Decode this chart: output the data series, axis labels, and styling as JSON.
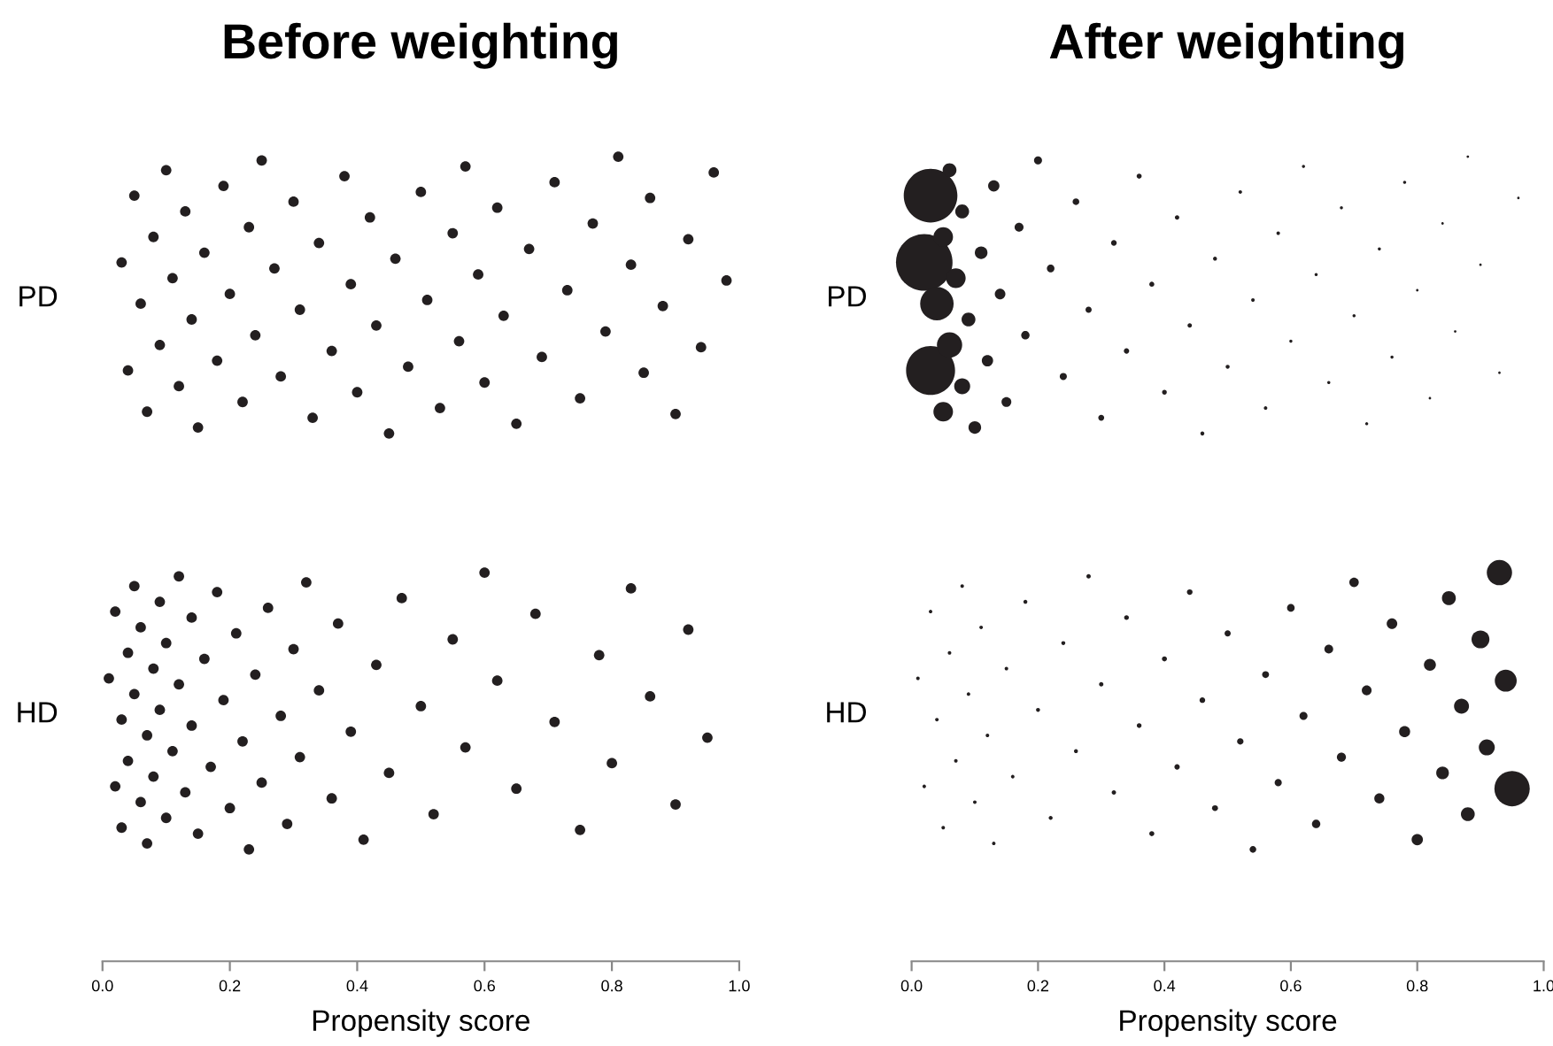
{
  "chart_data": [
    {
      "type": "scatter",
      "title": "Before weighting",
      "xlabel": "Propensity score",
      "orientation": "horizontal",
      "marker": "circle",
      "grid": false,
      "categories": [
        "PD",
        "HD"
      ],
      "xlim": [
        0,
        1
      ],
      "xticks": [
        {
          "value": 0,
          "label": "0.0"
        },
        {
          "value": 0.2,
          "label": "0.2"
        },
        {
          "value": 0.4,
          "label": "0.4"
        },
        {
          "value": 0.6,
          "label": "0.6"
        },
        {
          "value": 0.8,
          "label": "0.8"
        },
        {
          "value": 1,
          "label": "1.0"
        }
      ],
      "series": [
        {
          "color": "#231f20",
          "x": [
            "PD",
            "PD",
            "PD",
            "PD",
            "PD",
            "PD",
            "PD",
            "PD",
            "PD",
            "PD",
            "PD",
            "PD",
            "PD",
            "PD",
            "PD",
            "PD",
            "PD",
            "PD",
            "PD",
            "PD",
            "PD",
            "PD",
            "PD",
            "PD",
            "PD",
            "PD",
            "PD",
            "PD",
            "PD",
            "PD",
            "PD",
            "PD",
            "PD",
            "PD",
            "PD",
            "PD",
            "PD",
            "PD",
            "PD",
            "PD",
            "PD",
            "PD",
            "PD",
            "PD",
            "PD",
            "PD",
            "PD",
            "PD",
            "PD",
            "PD",
            "PD",
            "PD",
            "PD",
            "PD",
            "PD",
            "PD",
            "PD",
            "PD",
            "PD",
            "PD",
            "PD",
            "PD",
            "PD",
            "PD"
          ],
          "values": [
            0.03,
            0.04,
            0.05,
            0.06,
            0.07,
            0.08,
            0.09,
            0.1,
            0.11,
            0.12,
            0.13,
            0.14,
            0.15,
            0.16,
            0.18,
            0.19,
            0.2,
            0.22,
            0.23,
            0.24,
            0.25,
            0.27,
            0.28,
            0.3,
            0.31,
            0.33,
            0.34,
            0.36,
            0.38,
            0.39,
            0.4,
            0.42,
            0.43,
            0.45,
            0.46,
            0.48,
            0.5,
            0.51,
            0.53,
            0.55,
            0.56,
            0.57,
            0.59,
            0.6,
            0.62,
            0.63,
            0.65,
            0.67,
            0.69,
            0.71,
            0.73,
            0.75,
            0.77,
            0.79,
            0.81,
            0.83,
            0.85,
            0.86,
            0.88,
            0.9,
            0.92,
            0.94,
            0.96,
            0.98
          ]
        },
        {
          "color": "#231f20",
          "x": [
            "HD",
            "HD",
            "HD",
            "HD",
            "HD",
            "HD",
            "HD",
            "HD",
            "HD",
            "HD",
            "HD",
            "HD",
            "HD",
            "HD",
            "HD",
            "HD",
            "HD",
            "HD",
            "HD",
            "HD",
            "HD",
            "HD",
            "HD",
            "HD",
            "HD",
            "HD",
            "HD",
            "HD",
            "HD",
            "HD",
            "HD",
            "HD",
            "HD",
            "HD",
            "HD",
            "HD",
            "HD",
            "HD",
            "HD",
            "HD",
            "HD",
            "HD",
            "HD",
            "HD",
            "HD",
            "HD",
            "HD",
            "HD",
            "HD",
            "HD",
            "HD",
            "HD",
            "HD",
            "HD",
            "HD",
            "HD",
            "HD",
            "HD",
            "HD",
            "HD",
            "HD",
            "HD",
            "HD",
            "HD",
            "HD",
            "HD",
            "HD"
          ],
          "values": [
            0.01,
            0.02,
            0.02,
            0.03,
            0.03,
            0.04,
            0.04,
            0.05,
            0.05,
            0.06,
            0.06,
            0.07,
            0.07,
            0.08,
            0.08,
            0.09,
            0.09,
            0.1,
            0.1,
            0.11,
            0.12,
            0.12,
            0.13,
            0.14,
            0.14,
            0.15,
            0.16,
            0.17,
            0.18,
            0.19,
            0.2,
            0.21,
            0.22,
            0.23,
            0.24,
            0.25,
            0.26,
            0.28,
            0.29,
            0.3,
            0.31,
            0.32,
            0.34,
            0.36,
            0.37,
            0.39,
            0.41,
            0.43,
            0.45,
            0.47,
            0.5,
            0.52,
            0.55,
            0.57,
            0.6,
            0.62,
            0.65,
            0.68,
            0.71,
            0.75,
            0.78,
            0.8,
            0.83,
            0.86,
            0.9,
            0.92,
            0.95
          ]
        }
      ]
    },
    {
      "type": "bubble",
      "title": "After weighting",
      "xlabel": "Propensity score",
      "orientation": "horizontal",
      "marker": "circle",
      "grid": false,
      "categories": [
        "PD",
        "HD"
      ],
      "xlim": [
        0,
        1
      ],
      "xticks": [
        {
          "value": 0,
          "label": "0.0"
        },
        {
          "value": 0.2,
          "label": "0.2"
        },
        {
          "value": 0.4,
          "label": "0.4"
        },
        {
          "value": 0.6,
          "label": "0.6"
        },
        {
          "value": 0.8,
          "label": "0.8"
        },
        {
          "value": 1,
          "label": "1.0"
        }
      ],
      "series": [
        {
          "color": "#231f20",
          "x": [
            "PD",
            "PD",
            "PD",
            "PD",
            "PD",
            "PD",
            "PD",
            "PD",
            "PD",
            "PD",
            "PD",
            "PD",
            "PD",
            "PD",
            "PD",
            "PD",
            "PD",
            "PD",
            "PD",
            "PD",
            "PD",
            "PD",
            "PD",
            "PD",
            "PD",
            "PD",
            "PD",
            "PD",
            "PD",
            "PD",
            "PD",
            "PD",
            "PD",
            "PD",
            "PD",
            "PD",
            "PD",
            "PD",
            "PD",
            "PD",
            "PD",
            "PD",
            "PD",
            "PD",
            "PD",
            "PD",
            "PD",
            "PD",
            "PD",
            "PD",
            "PD",
            "PD",
            "PD",
            "PD",
            "PD",
            "PD",
            "PD",
            "PD"
          ],
          "values": [
            0.02,
            0.03,
            0.03,
            0.04,
            0.05,
            0.05,
            0.06,
            0.06,
            0.07,
            0.08,
            0.08,
            0.09,
            0.1,
            0.11,
            0.12,
            0.13,
            0.14,
            0.15,
            0.17,
            0.18,
            0.2,
            0.22,
            0.24,
            0.26,
            0.28,
            0.3,
            0.32,
            0.34,
            0.36,
            0.38,
            0.4,
            0.42,
            0.44,
            0.46,
            0.48,
            0.5,
            0.52,
            0.54,
            0.56,
            0.58,
            0.6,
            0.62,
            0.64,
            0.66,
            0.68,
            0.7,
            0.72,
            0.74,
            0.76,
            0.78,
            0.8,
            0.82,
            0.84,
            0.86,
            0.88,
            0.9,
            0.93,
            0.96
          ],
          "sizes": [
            1,
            0.75,
            0.9,
            0.35,
            0.12,
            0.12,
            0.2,
            0.06,
            0.12,
            0.08,
            0.06,
            0.06,
            0.05,
            0.05,
            0.04,
            0.04,
            0.035,
            0.03,
            0.025,
            0.022,
            0.02,
            0.018,
            0.016,
            0.014,
            0.012,
            0.011,
            0.01,
            0.009,
            0.008,
            0.008,
            0.007,
            0.006,
            0.006,
            0.005,
            0.005,
            0.005,
            0.004,
            0.004,
            0.004,
            0.004,
            0.003,
            0.003,
            0.003,
            0.003,
            0.003,
            0.003,
            0.003,
            0.003,
            0.003,
            0.003,
            0.002,
            0.002,
            0.002,
            0.002,
            0.002,
            0.002,
            0.002,
            0.002
          ]
        },
        {
          "color": "#231f20",
          "x": [
            "HD",
            "HD",
            "HD",
            "HD",
            "HD",
            "HD",
            "HD",
            "HD",
            "HD",
            "HD",
            "HD",
            "HD",
            "HD",
            "HD",
            "HD",
            "HD",
            "HD",
            "HD",
            "HD",
            "HD",
            "HD",
            "HD",
            "HD",
            "HD",
            "HD",
            "HD",
            "HD",
            "HD",
            "HD",
            "HD",
            "HD",
            "HD",
            "HD",
            "HD",
            "HD",
            "HD",
            "HD",
            "HD",
            "HD",
            "HD",
            "HD",
            "HD",
            "HD",
            "HD",
            "HD",
            "HD",
            "HD",
            "HD",
            "HD",
            "HD",
            "HD",
            "HD",
            "HD",
            "HD",
            "HD",
            "HD",
            "HD"
          ],
          "values": [
            0.01,
            0.02,
            0.03,
            0.04,
            0.05,
            0.06,
            0.07,
            0.08,
            0.09,
            0.1,
            0.11,
            0.12,
            0.13,
            0.15,
            0.16,
            0.18,
            0.2,
            0.22,
            0.24,
            0.26,
            0.28,
            0.3,
            0.32,
            0.34,
            0.36,
            0.38,
            0.4,
            0.42,
            0.44,
            0.46,
            0.48,
            0.5,
            0.52,
            0.54,
            0.56,
            0.58,
            0.6,
            0.62,
            0.64,
            0.66,
            0.68,
            0.7,
            0.72,
            0.74,
            0.76,
            0.78,
            0.8,
            0.82,
            0.84,
            0.85,
            0.87,
            0.88,
            0.9,
            0.91,
            0.93,
            0.94,
            0.95
          ],
          "sizes": [
            0.004,
            0.004,
            0.004,
            0.004,
            0.004,
            0.004,
            0.004,
            0.004,
            0.004,
            0.004,
            0.004,
            0.004,
            0.004,
            0.004,
            0.004,
            0.005,
            0.005,
            0.005,
            0.005,
            0.005,
            0.006,
            0.006,
            0.006,
            0.007,
            0.007,
            0.008,
            0.008,
            0.009,
            0.01,
            0.01,
            0.011,
            0.012,
            0.013,
            0.014,
            0.015,
            0.016,
            0.018,
            0.02,
            0.022,
            0.024,
            0.026,
            0.028,
            0.03,
            0.032,
            0.035,
            0.038,
            0.04,
            0.045,
            0.05,
            0.06,
            0.07,
            0.06,
            0.1,
            0.08,
            0.2,
            0.15,
            0.39
          ]
        }
      ]
    }
  ]
}
